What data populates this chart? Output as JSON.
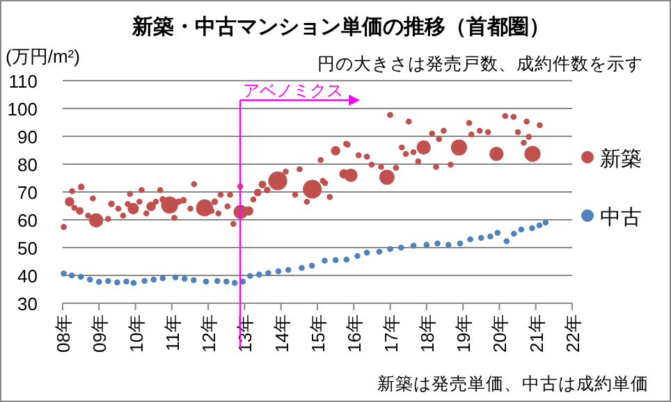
{
  "chart_data": {
    "type": "bubble",
    "title": "新築・中古マンション単価の推移（首都圏）",
    "ylabel": "(万円/m²)",
    "annotations": [
      "円の大きさは発売戸数、成約件数を示す",
      "新築は発売単価、中古は成約単価"
    ],
    "xlim": [
      8,
      22
    ],
    "ylim": [
      30,
      110
    ],
    "xticks": [
      {
        "value": 8,
        "label": "08年"
      },
      {
        "value": 9,
        "label": "09年"
      },
      {
        "value": 10,
        "label": "10年"
      },
      {
        "value": 11,
        "label": "11年"
      },
      {
        "value": 12,
        "label": "12年"
      },
      {
        "value": 13,
        "label": "13年"
      },
      {
        "value": 14,
        "label": "14年"
      },
      {
        "value": 15,
        "label": "15年"
      },
      {
        "value": 16,
        "label": "16年"
      },
      {
        "value": 17,
        "label": "17年"
      },
      {
        "value": 18,
        "label": "18年"
      },
      {
        "value": 19,
        "label": "19年"
      },
      {
        "value": 20,
        "label": "20年"
      },
      {
        "value": 21,
        "label": "21年"
      },
      {
        "value": 22,
        "label": "22年"
      }
    ],
    "yticks": [
      30,
      40,
      50,
      60,
      70,
      80,
      90,
      100,
      110
    ],
    "grid": "y",
    "legend": "right",
    "ref_lines": [
      {
        "axis": "x",
        "value": 12.88,
        "label": "アベノミクス",
        "color": "#ff00ff"
      }
    ],
    "series": [
      {
        "name": "新築",
        "color": "#c0504d",
        "x": [
          8.03,
          8.19,
          8.26,
          8.32,
          8.47,
          8.51,
          8.7,
          8.83,
          8.92,
          9.25,
          9.34,
          9.53,
          9.66,
          9.79,
          9.85,
          9.94,
          10.11,
          10.17,
          10.3,
          10.43,
          10.56,
          10.68,
          10.75,
          10.94,
          11.07,
          11.19,
          11.32,
          11.51,
          11.61,
          11.77,
          11.9,
          12.09,
          12.18,
          12.28,
          12.34,
          12.53,
          12.6,
          12.69,
          12.88,
          12.89,
          13.11,
          13.24,
          13.36,
          13.49,
          13.62,
          13.91,
          14.13,
          14.39,
          14.51,
          14.71,
          14.86,
          15.09,
          15.15,
          15.21,
          15.34,
          15.5,
          15.73,
          15.79,
          15.83,
          15.92,
          16.13,
          16.36,
          16.49,
          16.75,
          16.91,
          17.0,
          17.16,
          17.32,
          17.43,
          17.51,
          17.64,
          17.77,
          17.92,
          18.15,
          18.26,
          18.34,
          18.47,
          18.66,
          18.89,
          19.17,
          19.23,
          19.46,
          19.69,
          19.92,
          20.16,
          20.39,
          20.51,
          20.67,
          20.75,
          20.81,
          20.91,
          21.11
        ],
        "values": [
          57.4,
          66.5,
          70.3,
          64.3,
          63.2,
          71.8,
          61.5,
          67.7,
          59.8,
          60.3,
          65.7,
          64,
          61.5,
          65.7,
          69.3,
          64,
          66.5,
          70.7,
          62.3,
          64.8,
          66.5,
          70.7,
          67.3,
          65.3,
          60.7,
          66.5,
          67,
          64,
          72.8,
          63.2,
          64.3,
          63.2,
          66.5,
          62.3,
          69,
          64.8,
          69,
          58.5,
          72,
          62.8,
          63.2,
          67.3,
          69.8,
          72.7,
          70.7,
          74,
          77.3,
          69,
          78.2,
          66.5,
          71,
          81.5,
          74,
          73.2,
          68.2,
          84.8,
          76.5,
          87.3,
          87,
          76,
          83.2,
          82.7,
          79.8,
          79,
          75.3,
          97.7,
          78.7,
          86,
          83.7,
          95.3,
          84.3,
          81,
          86,
          91,
          79,
          89,
          92,
          79.8,
          86,
          94.8,
          90.7,
          92,
          91.5,
          83.7,
          97.3,
          97,
          91.5,
          87.7,
          95.3,
          89.8,
          83.7,
          94
        ],
        "sizes": [
          0.1,
          0.25,
          0.1,
          0.1,
          0.16,
          0.12,
          0.1,
          0.1,
          0.56,
          0.1,
          0.12,
          0.1,
          0.1,
          0.1,
          0.1,
          0.36,
          0.1,
          0.1,
          0.1,
          0.25,
          0.1,
          0.1,
          0.12,
          0.81,
          0.1,
          0.12,
          0.12,
          0.1,
          0.1,
          0.12,
          0.81,
          0.1,
          0.12,
          0.1,
          0.1,
          0.1,
          0.1,
          0.1,
          0.1,
          0.56,
          0.25,
          0.1,
          0.16,
          0.16,
          0.12,
          1.0,
          0.1,
          0.1,
          0.1,
          0.1,
          1.0,
          0.1,
          0.1,
          0.1,
          0.1,
          0.25,
          0.25,
          0.1,
          0.1,
          0.49,
          0.1,
          0.1,
          0.1,
          0.1,
          0.64,
          0.1,
          0.1,
          0.1,
          0.1,
          0.1,
          0.1,
          0.1,
          0.56,
          0.1,
          0.1,
          0.1,
          0.1,
          0.1,
          0.72,
          0.1,
          0.1,
          0.1,
          0.1,
          0.56,
          0.1,
          0.1,
          0.1,
          0.1,
          0.1,
          0.1,
          0.72,
          0.1
        ]
      },
      {
        "name": "中古",
        "color": "#4f81bd",
        "x": [
          8.03,
          8.25,
          8.5,
          8.75,
          9.0,
          9.25,
          9.5,
          9.75,
          9.95,
          10.25,
          10.5,
          10.75,
          11.1,
          11.35,
          11.6,
          11.94,
          12.25,
          12.5,
          12.73,
          12.95,
          13.15,
          13.4,
          13.65,
          13.93,
          14.2,
          14.57,
          14.85,
          15.2,
          15.5,
          15.8,
          16.1,
          16.36,
          16.7,
          17.0,
          17.3,
          17.64,
          18.0,
          18.3,
          18.6,
          18.92,
          19.2,
          19.5,
          19.75,
          19.95,
          20.2,
          20.4,
          20.6,
          20.9,
          21.1,
          21.27
        ],
        "values": [
          40.7,
          40,
          39.5,
          38.5,
          37.7,
          38,
          37.5,
          37.8,
          37.3,
          38,
          38.5,
          39,
          39.3,
          38.8,
          38.3,
          37.8,
          38,
          37.8,
          37.3,
          37.8,
          39.8,
          40.3,
          40.8,
          41.5,
          42,
          42.7,
          43.5,
          45.3,
          45.5,
          45.7,
          47,
          48.2,
          48.5,
          49.5,
          50,
          50.7,
          51,
          51.5,
          51,
          51.5,
          53,
          53.5,
          54,
          55.3,
          52.3,
          55,
          56.5,
          57,
          58,
          59
        ],
        "sizes": [
          0.1,
          0.1,
          0.1,
          0.1,
          0.1,
          0.1,
          0.1,
          0.1,
          0.1,
          0.1,
          0.1,
          0.1,
          0.1,
          0.1,
          0.1,
          0.1,
          0.1,
          0.1,
          0.1,
          0.1,
          0.1,
          0.1,
          0.1,
          0.1,
          0.1,
          0.1,
          0.1,
          0.1,
          0.1,
          0.1,
          0.1,
          0.1,
          0.1,
          0.1,
          0.1,
          0.1,
          0.1,
          0.1,
          0.1,
          0.1,
          0.1,
          0.1,
          0.1,
          0.1,
          0.1,
          0.1,
          0.1,
          0.1,
          0.1,
          0.1
        ]
      }
    ]
  }
}
